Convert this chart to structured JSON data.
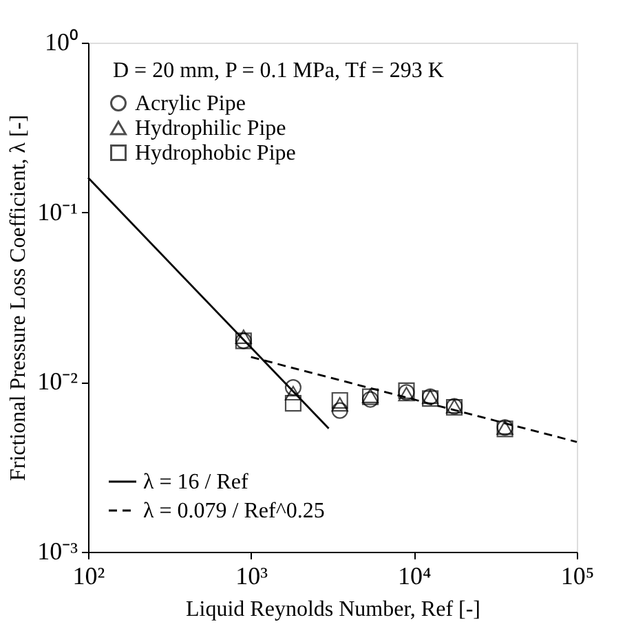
{
  "chart_data": {
    "type": "scatter",
    "xlabel": "Liquid Reynolds Number,  Ref  [-]",
    "ylabel": "Frictional Pressure Loss Coefficient,  λ  [-]",
    "annotations": [
      "D = 20 mm, P = 0.1 MPa, Tf = 293 K"
    ],
    "log": "xy",
    "grid": false,
    "legend": "left",
    "xlim": [
      100,
      100000
    ],
    "ylim": [
      0.001,
      1
    ],
    "xticks": [
      {
        "value": 100,
        "label": "10²"
      },
      {
        "value": 1000,
        "label": "10³"
      },
      {
        "value": 10000,
        "label": "10⁴"
      },
      {
        "value": 100000,
        "label": "10⁵"
      }
    ],
    "yticks": [
      {
        "value": 0.001,
        "label": "10⁻³"
      },
      {
        "value": 0.01,
        "label": "10⁻²"
      },
      {
        "value": 0.1,
        "label": "10⁻¹"
      },
      {
        "value": 1,
        "label": "10⁰"
      }
    ],
    "series": [
      {
        "name": "Acrylic Pipe",
        "marker": "circle",
        "color": "#000000",
        "x": [
          900,
          1815,
          3510,
          5400,
          9000,
          12600,
          17700,
          36200
        ],
        "values": [
          0.0175,
          0.0093,
          0.0068,
          0.0079,
          0.0087,
          0.0082,
          0.0072,
          0.0054
        ]
      },
      {
        "name": "Hydrophilic Pipe",
        "marker": "triangle",
        "color": "#000000",
        "x": [
          900,
          1815,
          3510,
          5400,
          9000,
          12600,
          17700,
          36200
        ],
        "values": [
          0.0185,
          0.0086,
          0.0074,
          0.0083,
          0.0085,
          0.0082,
          0.0072,
          0.0054
        ]
      },
      {
        "name": "Hydrophobic Pipe",
        "marker": "square",
        "color": "#000000",
        "x": [
          900,
          1815,
          3510,
          5400,
          9000,
          12600,
          17700,
          36200
        ],
        "values": [
          0.0175,
          0.0075,
          0.0078,
          0.0082,
          0.0089,
          0.008,
          0.0071,
          0.0053
        ]
      },
      {
        "name": "λ = 16 / Ref",
        "type": "line",
        "line_style": "solid",
        "color": "#000000",
        "x": [
          100,
          3000
        ],
        "values": [
          0.16,
          0.00533
        ]
      },
      {
        "name": "λ = 0.079 / Ref^0.25",
        "type": "line",
        "line_style": "dashed",
        "color": "#000000",
        "x": [
          1000,
          100000
        ],
        "values": [
          0.01405,
          0.00444
        ]
      }
    ]
  }
}
